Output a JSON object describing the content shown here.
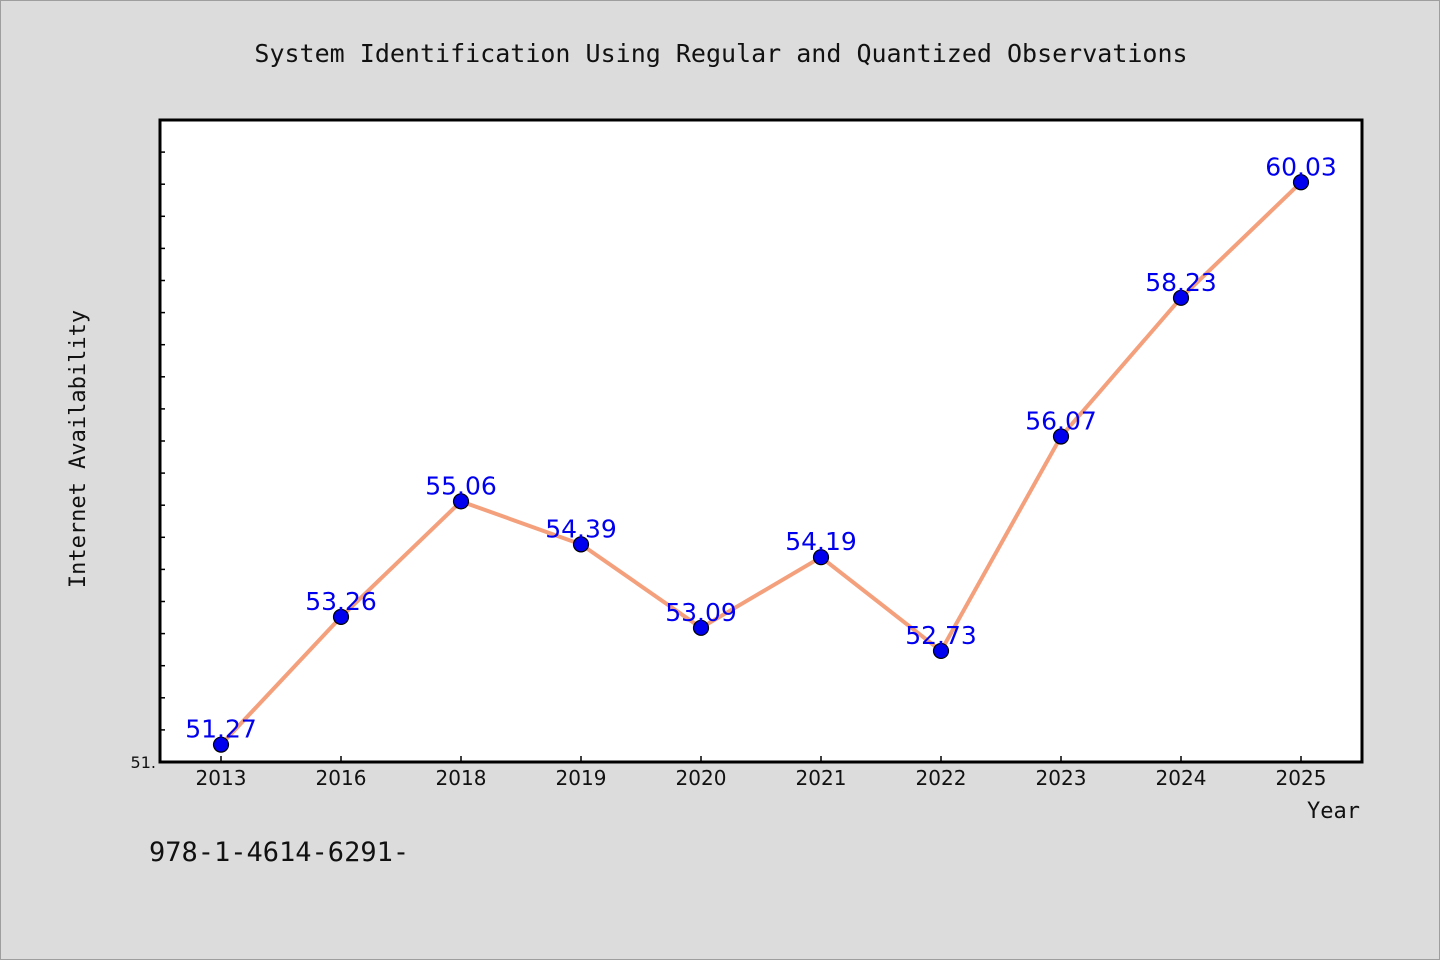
{
  "chart_data": {
    "type": "line",
    "title": "System Identification Using Regular and Quantized Observations",
    "xlabel": "Year",
    "ylabel": "Internet Availability",
    "categories": [
      "2013",
      "2016",
      "2018",
      "2019",
      "2020",
      "2021",
      "2022",
      "2023",
      "2024",
      "2025"
    ],
    "series": [
      {
        "values": [
          51.27,
          53.26,
          55.06,
          54.39,
          53.09,
          54.19,
          52.73,
          56.07,
          58.23,
          60.03
        ],
        "line_color": "#f4a07c",
        "marker_color": "#0000ee",
        "label_color": "#0000ee"
      }
    ],
    "data_labels": [
      "51.27",
      "53.26",
      "55.06",
      "54.39",
      "53.09",
      "54.19",
      "52.73",
      "56.07",
      "58.23",
      "60.03"
    ],
    "ylim": [
      51.0,
      61.0
    ],
    "y_tick_labels": [
      "51."
    ],
    "grid": false,
    "legend": "none"
  },
  "footer": {
    "text": "978-1-4614-6291-"
  }
}
